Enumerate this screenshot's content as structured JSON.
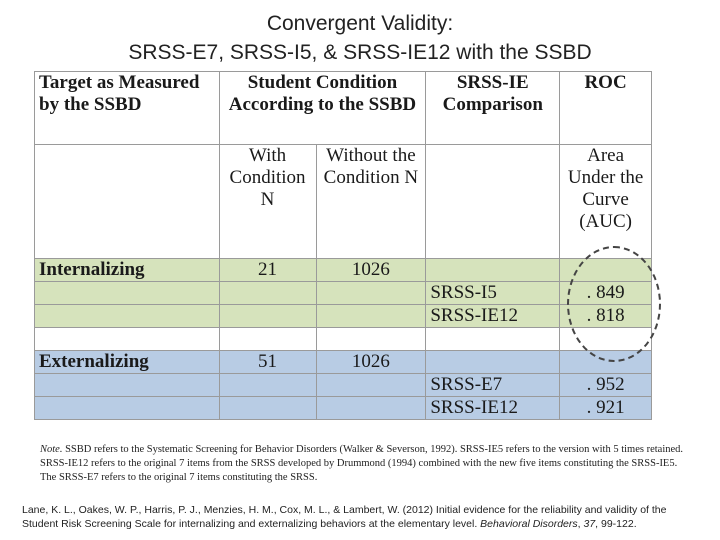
{
  "title": {
    "line1": "Convergent Validity:",
    "line2": "SRSS-E7, SRSS-I5, & SRSS-IE12 with the SSBD"
  },
  "table": {
    "header": {
      "target": "Target as Measured by the SSBD",
      "condition": "Student Condition According to the SSBD",
      "comparison": "SRSS-IE Comparison",
      "roc": "ROC"
    },
    "subheader": {
      "with": "With Condition N",
      "without": "Without the Condition N",
      "auc": "Area Under the Curve (AUC)"
    },
    "groups": [
      {
        "label": "Internalizing",
        "with_n": "21",
        "without_n": "1026",
        "rows": [
          {
            "measure": "SRSS-I5",
            "auc": ". 849"
          },
          {
            "measure": "SRSS-IE12",
            "auc": ". 818"
          }
        ]
      },
      {
        "label": "Externalizing",
        "with_n": "51",
        "without_n": "1026",
        "rows": [
          {
            "measure": "SRSS-E7",
            "auc": ". 952"
          },
          {
            "measure": "SRSS-IE12",
            "auc": ". 921"
          }
        ]
      }
    ]
  },
  "note": {
    "prefix": "Note.",
    "text": " SSBD refers to the Systematic Screening for Behavior Disorders (Walker & Severson, 1992). SRSS-IE5 refers to the version with 5 times retained. SRSS-IE12 refers to the original 7 items from the SRSS developed by Drummond (1994) combined with the new five items constituting the SRSS-IE5. The SRSS-E7 refers to the original 7 items constituting the SRSS."
  },
  "citation": {
    "text": "Lane, K. L., Oakes, W. P., Harris, P. J., Menzies, H. M., Cox, M. L., & Lambert, W. (2012) Initial evidence for the reliability and validity of the Student Risk Screening Scale for internalizing and externalizing behaviors at the elementary level. ",
    "journal": "Behavioral Disorders",
    "volume": "37",
    "pages": ", 99-122."
  }
}
